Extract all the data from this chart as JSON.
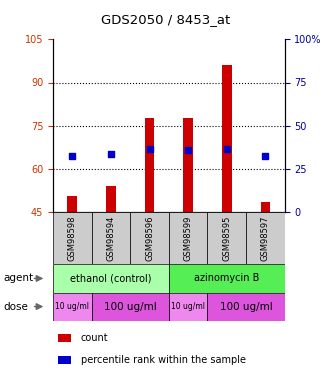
{
  "title": "GDS2050 / 8453_at",
  "samples": [
    "GSM98598",
    "GSM98594",
    "GSM98596",
    "GSM98599",
    "GSM98595",
    "GSM98597"
  ],
  "bar_bottoms": [
    45,
    45,
    45,
    45,
    45,
    45
  ],
  "bar_tops": [
    50.5,
    54.0,
    77.5,
    77.5,
    96.0,
    48.5
  ],
  "percentile_values": [
    64.5,
    65.0,
    67.0,
    66.5,
    67.0,
    64.5
  ],
  "left_ylim": [
    45,
    105
  ],
  "left_yticks": [
    45,
    60,
    75,
    90,
    105
  ],
  "left_yticklabels": [
    "45",
    "60",
    "75",
    "90",
    "105"
  ],
  "right_ylim": [
    0,
    100
  ],
  "right_yticks": [
    0,
    25,
    50,
    75,
    100
  ],
  "right_yticklabels": [
    "0",
    "25",
    "50",
    "75",
    "100%"
  ],
  "bar_color": "#cc0000",
  "dot_color": "#0000cc",
  "agent_groups": [
    {
      "label": "ethanol (control)",
      "start": 0,
      "end": 3,
      "color": "#aaffaa"
    },
    {
      "label": "azinomycin B",
      "start": 3,
      "end": 6,
      "color": "#55ee55"
    }
  ],
  "dose_groups": [
    {
      "label": "10 ug/ml",
      "start": 0,
      "end": 1,
      "color": "#ee88ee",
      "fontsize": 5.5
    },
    {
      "label": "100 ug/ml",
      "start": 1,
      "end": 3,
      "color": "#dd55dd",
      "fontsize": 7.5
    },
    {
      "label": "10 ug/ml",
      "start": 3,
      "end": 4,
      "color": "#ee88ee",
      "fontsize": 5.5
    },
    {
      "label": "100 ug/ml",
      "start": 4,
      "end": 6,
      "color": "#dd55dd",
      "fontsize": 7.5
    }
  ],
  "left_label_color": "#cc3300",
  "right_label_color": "#000099",
  "grid_color": "#000000",
  "sample_box_color": "#cccccc",
  "bar_width": 0.25,
  "dot_size": 20,
  "grid_yticks": [
    60,
    75,
    90
  ]
}
